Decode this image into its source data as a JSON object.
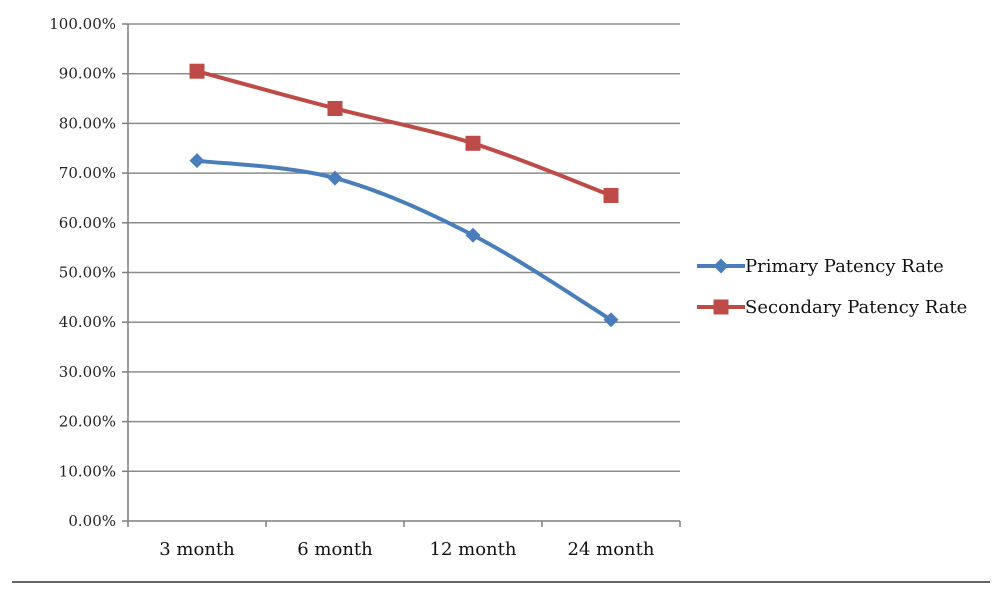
{
  "chart_data": {
    "type": "line",
    "categories": [
      "3 month",
      "6 month",
      "12 month",
      "24 month"
    ],
    "series": [
      {
        "name": "Primary Patency Rate",
        "values": [
          72.5,
          69.0,
          57.5,
          40.5
        ],
        "color": "#4a7ebb",
        "marker": "diamond"
      },
      {
        "name": "Secondary Patency Rate",
        "values": [
          90.5,
          83.0,
          76.0,
          65.5
        ],
        "color": "#be4b48",
        "marker": "square"
      }
    ],
    "yticks": [
      "0.00%",
      "10.00%",
      "20.00%",
      "30.00%",
      "40.00%",
      "50.00%",
      "60.00%",
      "70.00%",
      "80.00%",
      "90.00%",
      "100.00%"
    ],
    "ylim": [
      0,
      100
    ],
    "grid": true,
    "legend_position": "right"
  }
}
